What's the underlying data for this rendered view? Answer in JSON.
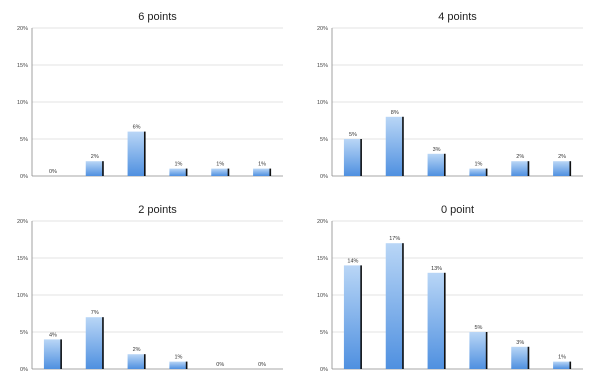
{
  "colors": {
    "bar_top": "#b9d6f6",
    "bar_bottom": "#4f90e0",
    "bar_shadow": "#111111"
  },
  "chart_data": [
    {
      "type": "bar",
      "title": "6 points",
      "categories": [
        "",
        "",
        "",
        "",
        "",
        ""
      ],
      "values": [
        0,
        2,
        6,
        1,
        1,
        1
      ],
      "data_labels": [
        "0%",
        "2%",
        "6%",
        "1%",
        "1%",
        "1%"
      ],
      "yticks": [
        "0%",
        "5%",
        "10%",
        "15%",
        "20%"
      ],
      "ylim": [
        0,
        20
      ],
      "grid": true,
      "legend": "none"
    },
    {
      "type": "bar",
      "title": "4 points",
      "categories": [
        "",
        "",
        "",
        "",
        "",
        ""
      ],
      "values": [
        5,
        8,
        3,
        1,
        2,
        2
      ],
      "data_labels": [
        "5%",
        "8%",
        "3%",
        "1%",
        "2%",
        "2%"
      ],
      "yticks": [
        "0%",
        "5%",
        "10%",
        "15%",
        "20%"
      ],
      "ylim": [
        0,
        20
      ],
      "grid": true,
      "legend": "none"
    },
    {
      "type": "bar",
      "title": "2 points",
      "categories": [
        "",
        "",
        "",
        "",
        "",
        ""
      ],
      "values": [
        4,
        7,
        2,
        1,
        0,
        0
      ],
      "data_labels": [
        "4%",
        "7%",
        "2%",
        "1%",
        "0%",
        "0%"
      ],
      "yticks": [
        "0%",
        "5%",
        "10%",
        "15%",
        "20%"
      ],
      "ylim": [
        0,
        20
      ],
      "grid": true,
      "legend": "none"
    },
    {
      "type": "bar",
      "title": "0 point",
      "categories": [
        "",
        "",
        "",
        "",
        "",
        ""
      ],
      "values": [
        14,
        17,
        13,
        5,
        3,
        1
      ],
      "data_labels": [
        "14%",
        "17%",
        "13%",
        "5%",
        "3%",
        "1%"
      ],
      "yticks": [
        "0%",
        "5%",
        "10%",
        "15%",
        "20%"
      ],
      "ylim": [
        0,
        20
      ],
      "grid": true,
      "legend": "none"
    }
  ]
}
